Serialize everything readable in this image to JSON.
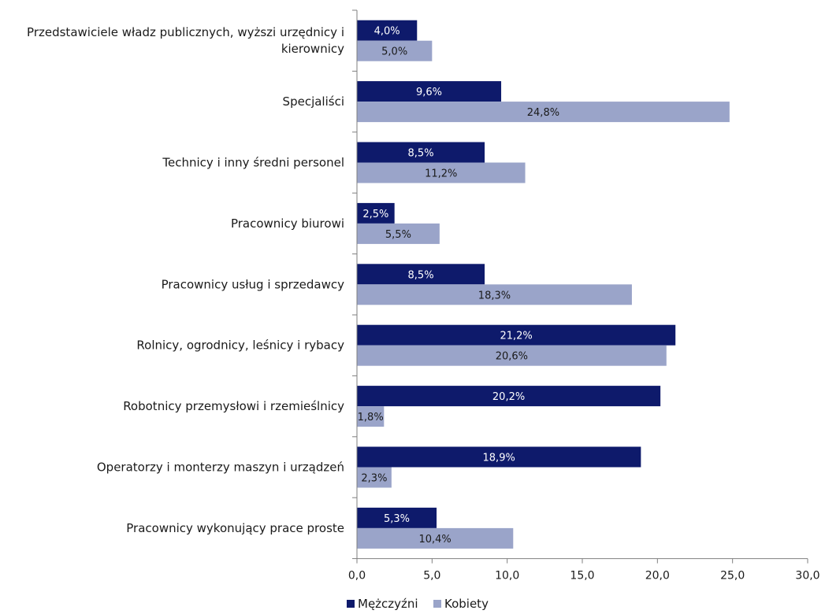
{
  "chart_data": {
    "type": "bar",
    "orientation": "horizontal",
    "categories": [
      [
        "Przedstawiciele władz publicznych, wyższi urzędnicy i",
        "kierownicy"
      ],
      [
        "Specjaliści"
      ],
      [
        "Technicy i inny średni personel"
      ],
      [
        "Pracownicy biurowi"
      ],
      [
        "Pracownicy usług i sprzedawcy"
      ],
      [
        "Rolnicy, ogrodnicy, leśnicy i rybacy"
      ],
      [
        "Robotnicy przemysłowi i rzemieślnicy"
      ],
      [
        "Operatorzy i monterzy maszyn i urządzeń"
      ],
      [
        "Pracownicy wykonujący prace proste"
      ]
    ],
    "series": [
      {
        "name": "Mężczyźni",
        "color": "#0e1a6b",
        "label_color": "#ffffff",
        "values": [
          4.0,
          9.6,
          8.5,
          2.5,
          8.5,
          21.2,
          20.2,
          18.9,
          5.3
        ],
        "labels": [
          "4,0%",
          "9,6%",
          "8,5%",
          "2,5%",
          "8,5%",
          "21,2%",
          "20,2%",
          "18,9%",
          "5,3%"
        ]
      },
      {
        "name": "Kobiety",
        "color": "#9aa4c9",
        "label_color": "#1a1a1a",
        "values": [
          5.0,
          24.8,
          11.2,
          5.5,
          18.3,
          20.6,
          1.8,
          2.3,
          10.4
        ],
        "labels": [
          "5,0%",
          "24,8%",
          "11,2%",
          "5,5%",
          "18,3%",
          "20,6%",
          "1,8%",
          "2,3%",
          "10,4%"
        ]
      }
    ],
    "xlim": [
      0,
      30
    ],
    "xticks": [
      0,
      5,
      10,
      15,
      20,
      25,
      30
    ],
    "xtick_labels": [
      "0,0",
      "5,0",
      "10,0",
      "15,0",
      "20,0",
      "25,0",
      "30,0"
    ],
    "grid": false,
    "legend": "bottom"
  }
}
